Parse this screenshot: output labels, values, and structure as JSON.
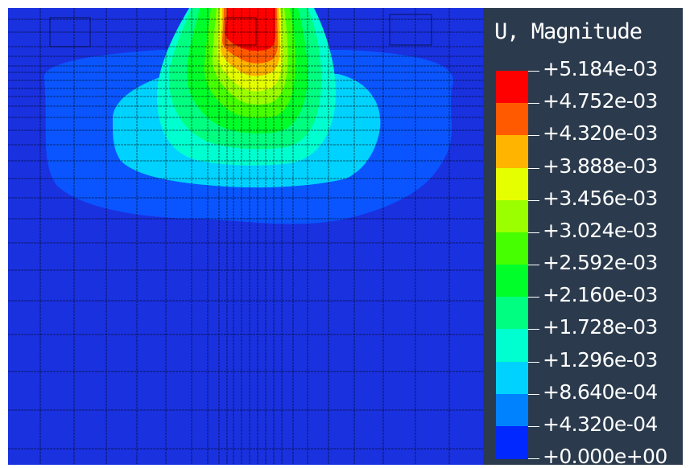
{
  "contour_plot": {
    "background_color": "#1a31e0",
    "mesh_line_color": "#000000"
  },
  "legend": {
    "title": "U, Magnitude",
    "labels": [
      "+5.184e-03",
      "+4.752e-03",
      "+4.320e-03",
      "+3.888e-03",
      "+3.456e-03",
      "+3.024e-03",
      "+2.592e-03",
      "+2.160e-03",
      "+1.728e-03",
      "+1.296e-03",
      "+8.640e-04",
      "+4.320e-04",
      "+0.000e+00"
    ],
    "colors": [
      "#ff0000",
      "#ff5a00",
      "#ffb400",
      "#e6ff00",
      "#9cff00",
      "#46ff00",
      "#00ff2a",
      "#00ff80",
      "#00ffd0",
      "#00d2ff",
      "#0082ff",
      "#0028ff"
    ]
  }
}
